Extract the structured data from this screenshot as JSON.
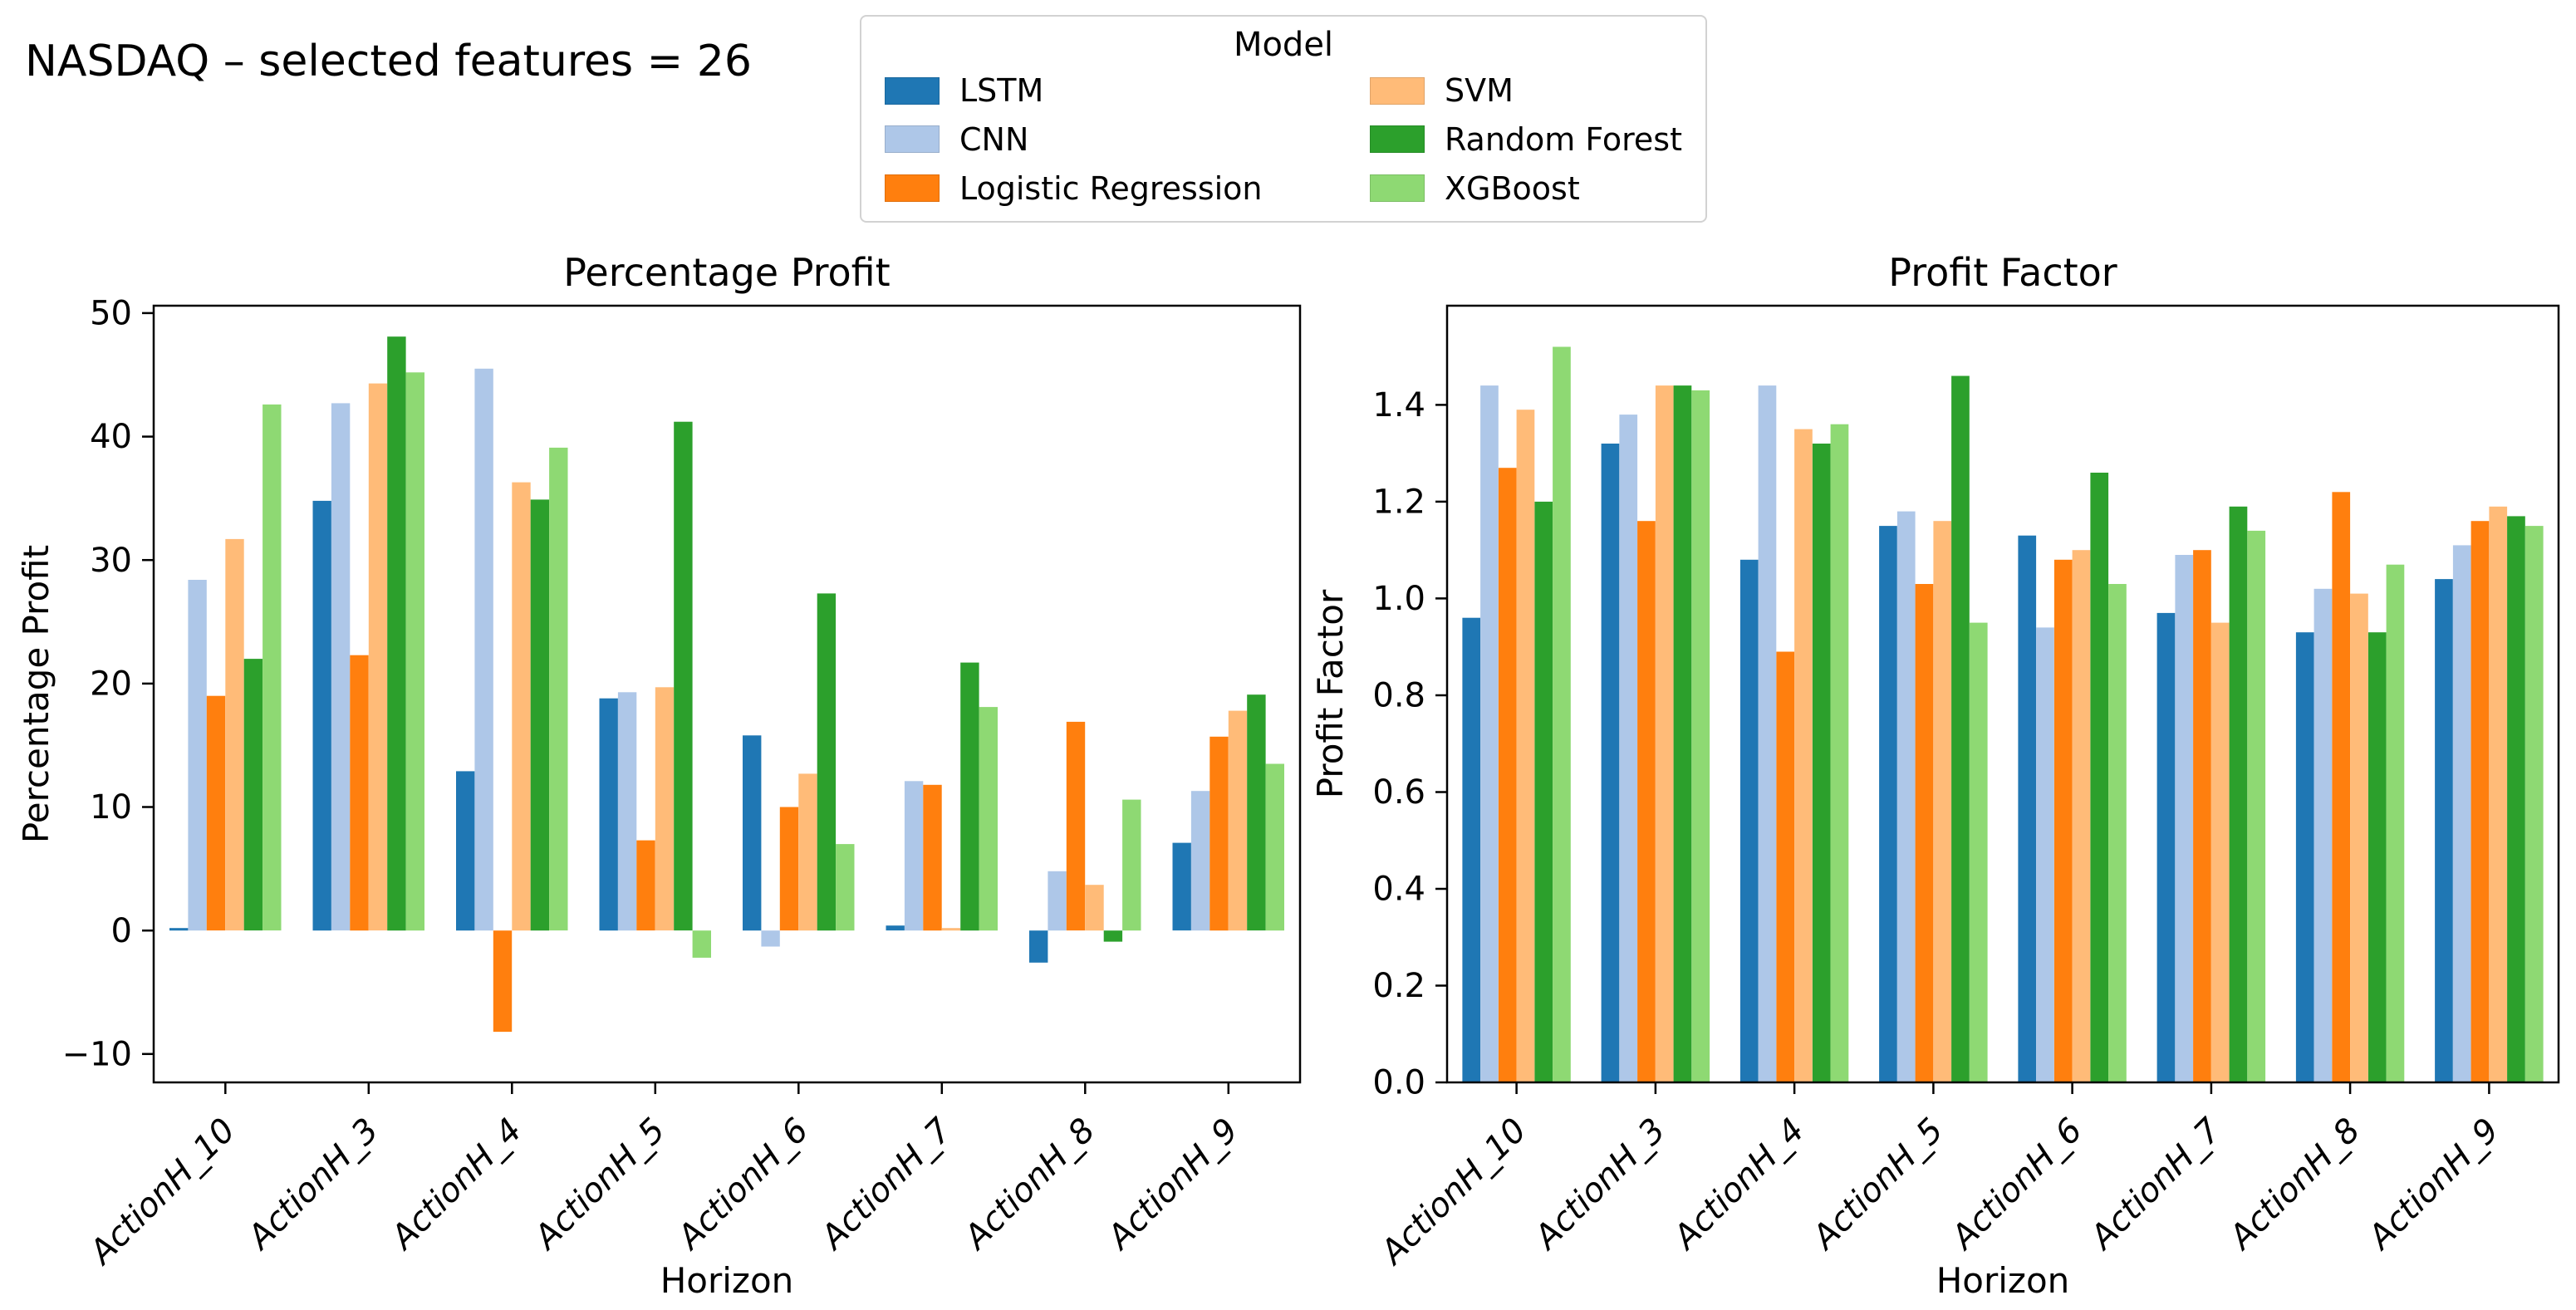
{
  "page": {
    "background": "#ffffff",
    "suptitle": "NASDAQ – selected features = 26"
  },
  "legend": {
    "title": "Model",
    "columns": 2,
    "position": "top-center",
    "items": [
      {
        "label": "LSTM",
        "color": "#1f77b4"
      },
      {
        "label": "CNN",
        "color": "#aec7e8"
      },
      {
        "label": "Logistic Regression",
        "color": "#ff7f0e"
      },
      {
        "label": "SVM",
        "color": "#ffbb78"
      },
      {
        "label": "Random Forest",
        "color": "#2ca02c"
      },
      {
        "label": "XGBoost",
        "color": "#8ed973"
      }
    ]
  },
  "chart_data": [
    {
      "type": "bar",
      "title": "Percentage Profit",
      "xlabel": "Horizon",
      "ylabel": "Percentage Profit",
      "grid": false,
      "categories": [
        "ActionH_10",
        "ActionH_3",
        "ActionH_4",
        "ActionH_5",
        "ActionH_6",
        "ActionH_7",
        "ActionH_8",
        "ActionH_9"
      ],
      "series": [
        {
          "name": "LSTM",
          "color": "#1f77b4",
          "values": [
            0.2,
            34.8,
            12.9,
            18.8,
            15.8,
            0.4,
            -2.6,
            7.1
          ]
        },
        {
          "name": "CNN",
          "color": "#aec7e8",
          "values": [
            28.4,
            42.7,
            45.5,
            19.3,
            -1.3,
            12.1,
            4.8,
            11.3
          ]
        },
        {
          "name": "Logistic Regression",
          "color": "#ff7f0e",
          "values": [
            19.0,
            22.3,
            -8.2,
            7.3,
            10.0,
            11.8,
            16.9,
            15.7
          ]
        },
        {
          "name": "SVM",
          "color": "#ffbb78",
          "values": [
            31.7,
            44.3,
            36.3,
            19.7,
            12.7,
            0.2,
            3.7,
            17.8
          ]
        },
        {
          "name": "Random Forest",
          "color": "#2ca02c",
          "values": [
            22.0,
            48.1,
            34.9,
            41.2,
            27.3,
            21.7,
            -0.9,
            19.1
          ]
        },
        {
          "name": "XGBoost",
          "color": "#8ed973",
          "values": [
            42.6,
            45.2,
            39.1,
            -2.2,
            7.0,
            18.1,
            10.6,
            13.5
          ]
        }
      ],
      "ylim": [
        -12.3,
        50.6
      ],
      "yticks": [
        -10,
        0,
        10,
        20,
        30,
        40,
        50
      ],
      "ytick_labels": [
        "−10",
        "0",
        "10",
        "20",
        "30",
        "40",
        "50"
      ]
    },
    {
      "type": "bar",
      "title": "Profit Factor",
      "xlabel": "Horizon",
      "ylabel": "Profit Factor",
      "grid": false,
      "categories": [
        "ActionH_10",
        "ActionH_3",
        "ActionH_4",
        "ActionH_5",
        "ActionH_6",
        "ActionH_7",
        "ActionH_8",
        "ActionH_9"
      ],
      "series": [
        {
          "name": "LSTM",
          "color": "#1f77b4",
          "values": [
            0.96,
            1.32,
            1.08,
            1.15,
            1.13,
            0.97,
            0.93,
            1.04
          ]
        },
        {
          "name": "CNN",
          "color": "#aec7e8",
          "values": [
            1.44,
            1.38,
            1.44,
            1.18,
            0.94,
            1.09,
            1.02,
            1.11
          ]
        },
        {
          "name": "Logistic Regression",
          "color": "#ff7f0e",
          "values": [
            1.27,
            1.16,
            0.89,
            1.03,
            1.08,
            1.1,
            1.22,
            1.16
          ]
        },
        {
          "name": "SVM",
          "color": "#ffbb78",
          "values": [
            1.39,
            1.44,
            1.35,
            1.16,
            1.1,
            0.95,
            1.01,
            1.19
          ]
        },
        {
          "name": "Random Forest",
          "color": "#2ca02c",
          "values": [
            1.2,
            1.44,
            1.32,
            1.46,
            1.26,
            1.19,
            0.93,
            1.17
          ]
        },
        {
          "name": "XGBoost",
          "color": "#8ed973",
          "values": [
            1.52,
            1.43,
            1.36,
            0.95,
            1.03,
            1.14,
            1.07,
            1.15
          ]
        }
      ],
      "ylim": [
        0,
        1.605
      ],
      "yticks": [
        0,
        0.2,
        0.4,
        0.6,
        0.8,
        1.0,
        1.2,
        1.4
      ],
      "ytick_labels": [
        "0.0",
        "0.2",
        "0.4",
        "0.6",
        "0.8",
        "1.0",
        "1.2",
        "1.4"
      ]
    }
  ]
}
